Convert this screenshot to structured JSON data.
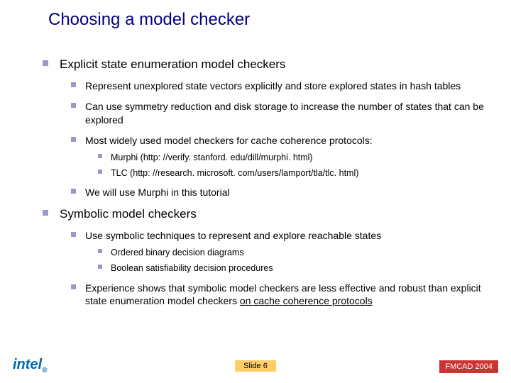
{
  "title": "Choosing a model checker",
  "sections": [
    {
      "heading": "Explicit state enumeration model checkers",
      "items": [
        {
          "text": "Represent unexplored state vectors explicitly and store explored states in hash tables"
        },
        {
          "text": "Can use symmetry reduction and disk storage to increase the number of states that can be explored"
        },
        {
          "text": "Most widely used model checkers for cache coherence protocols:",
          "sub": [
            "Murphi (http: //verify. stanford. edu/dill/murphi. html)",
            "TLC (http: //research. microsoft. com/users/lamport/tla/tlc. html)"
          ]
        },
        {
          "text": "We will use Murphi in this tutorial"
        }
      ]
    },
    {
      "heading": "Symbolic model checkers",
      "items": [
        {
          "text": "Use symbolic techniques to represent and explore reachable states",
          "sub": [
            "Ordered binary decision diagrams",
            "Boolean satisfiability decision procedures"
          ]
        },
        {
          "text_pre": "Experience shows that symbolic model checkers are less effective and robust than explicit state enumeration model checkers ",
          "text_u": "on cache coherence protocols"
        }
      ]
    }
  ],
  "footer": {
    "logo": "intel",
    "slide_label": "Slide 6",
    "conference": "FMCAD 2004"
  },
  "colors": {
    "title": "#000080",
    "bullet": "#9999cc",
    "slidenum_bg": "#ffcc66",
    "conf_bg": "#cc3333",
    "logo": "#0068b5"
  }
}
